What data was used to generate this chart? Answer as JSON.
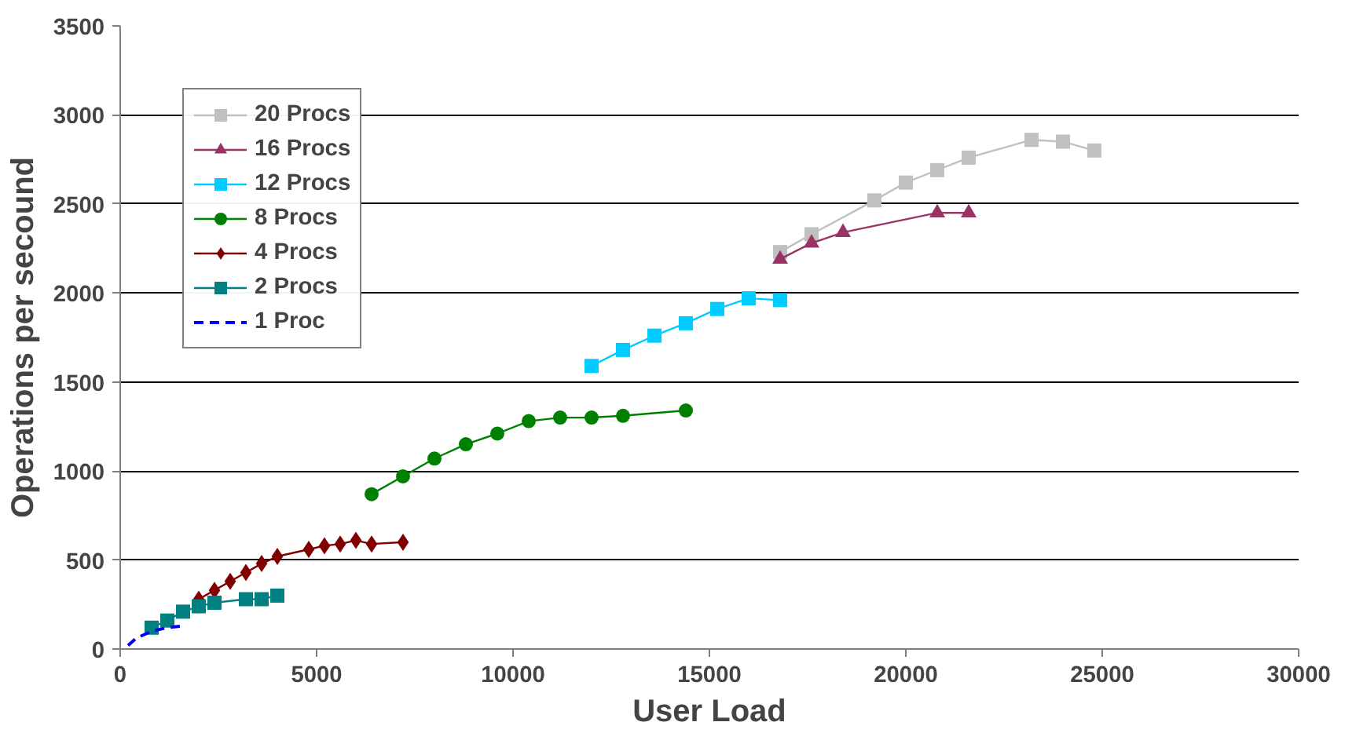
{
  "chart_data": {
    "type": "line",
    "xlabel": "User Load",
    "ylabel": "Operations per secound",
    "xlim": [
      0,
      30000
    ],
    "ylim": [
      0,
      3500
    ],
    "xticks": [
      0,
      5000,
      10000,
      15000,
      20000,
      25000,
      30000
    ],
    "yticks": [
      0,
      500,
      1000,
      1500,
      2000,
      2500,
      3000,
      3500
    ],
    "grid": "y",
    "legend": "top left",
    "series": [
      {
        "name": "20 Procs",
        "color": "#c0c0c0",
        "marker": "square",
        "x": [
          16800,
          17600,
          19200,
          20000,
          20800,
          21600,
          23200,
          24000,
          24800
        ],
        "values": [
          2230,
          2330,
          2520,
          2620,
          2690,
          2760,
          2860,
          2850,
          2800
        ]
      },
      {
        "name": "16 Procs",
        "color": "#993366",
        "marker": "triangle",
        "x": [
          16800,
          17600,
          18400,
          20800,
          21600
        ],
        "values": [
          2190,
          2280,
          2340,
          2450,
          2450
        ]
      },
      {
        "name": "12 Procs",
        "color": "#00ccff",
        "marker": "square",
        "x": [
          12000,
          12800,
          13600,
          14400,
          15200,
          16000,
          16800
        ],
        "values": [
          1590,
          1680,
          1760,
          1830,
          1910,
          1970,
          1960
        ]
      },
      {
        "name": "8 Procs",
        "color": "#008000",
        "marker": "circle",
        "x": [
          6400,
          7200,
          8000,
          8800,
          9600,
          10400,
          11200,
          12000,
          12800,
          14400
        ],
        "values": [
          870,
          970,
          1070,
          1150,
          1210,
          1280,
          1300,
          1300,
          1310,
          1340
        ]
      },
      {
        "name": "4 Procs",
        "color": "#800000",
        "marker": "diamond",
        "x": [
          2000,
          2400,
          2800,
          3200,
          3600,
          4000,
          4800,
          5200,
          5600,
          6000,
          6400,
          7200
        ],
        "values": [
          280,
          330,
          380,
          430,
          480,
          520,
          560,
          580,
          590,
          610,
          590,
          600
        ]
      },
      {
        "name": "2 Procs",
        "color": "#008080",
        "marker": "square",
        "x": [
          800,
          1200,
          1600,
          2000,
          2400,
          3200,
          3600,
          4000
        ],
        "values": [
          120,
          160,
          210,
          240,
          260,
          280,
          280,
          300
        ]
      },
      {
        "name": "1 Proc",
        "color": "#0000ff",
        "marker": "none",
        "line_style": "dashed",
        "x": [
          200,
          400,
          800,
          1200,
          1600
        ],
        "values": [
          20,
          60,
          100,
          120,
          130
        ]
      }
    ]
  }
}
